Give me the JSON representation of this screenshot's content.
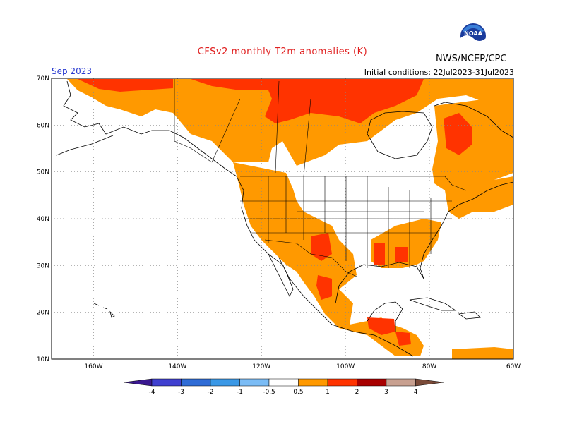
{
  "title": "CFSv2 monthly T2m anomalies (K)",
  "valid_month": "Sep 2023",
  "initial_conditions": "Initial conditions: 22Jul2023-31Jul2023",
  "agency": "NWS/NCEP/CPC",
  "logo_text": "NOAA",
  "lat_labels": [
    "70N",
    "60N",
    "50N",
    "40N",
    "30N",
    "20N",
    "10N"
  ],
  "lon_labels": [
    "160W",
    "140W",
    "120W",
    "100W",
    "80W",
    "60W"
  ],
  "colorbar": {
    "ticks": [
      "-4",
      "-3",
      "-2",
      "-1",
      "-0.5",
      "0.5",
      "1",
      "2",
      "3",
      "4"
    ],
    "colors": {
      "lt_m4": "#3a1890",
      "m4_m3": "#4040d0",
      "m3_m2": "#2f6cd6",
      "m2_m1": "#3a98e6",
      "m1_m05": "#7bbcf5",
      "neutral": "#ffffff",
      "p05_p1": "#ff9900",
      "p1_p2": "#ff3300",
      "p2_p3": "#a80000",
      "p3_p4": "#c8a090",
      "gt_p4": "#7a4a38"
    }
  },
  "colors": {
    "title": "#e02020",
    "month_label": "#2a3bd0",
    "grid": "#888888",
    "coast": "#000000"
  }
}
